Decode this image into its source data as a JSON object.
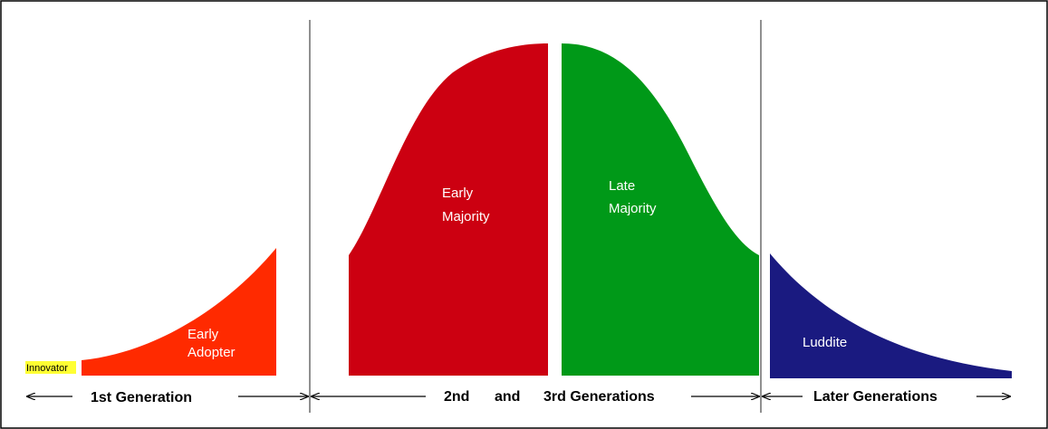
{
  "nodes": [
    {
      "label": [
        "Innovator"
      ]
    },
    {
      "label": [
        "Early",
        "Adopter"
      ]
    },
    {
      "label": [
        "Early",
        "Majority"
      ]
    },
    {
      "label": [
        "Late",
        "Majority"
      ]
    },
    {
      "label": [
        "Luddite"
      ]
    }
  ],
  "generations": [
    "1st Generation",
    "2nd",
    "and",
    "3rd Generations",
    "Later Generations"
  ]
}
